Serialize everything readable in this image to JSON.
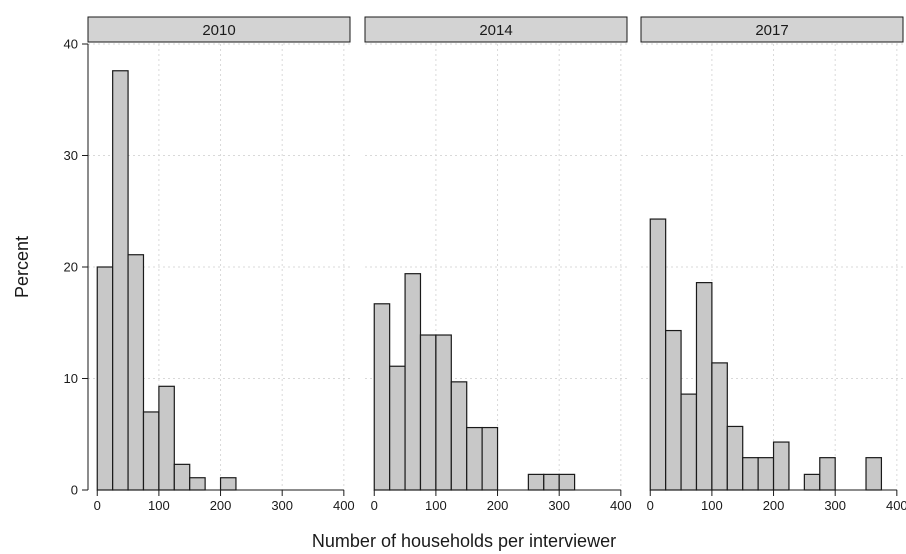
{
  "chart_data": {
    "type": "bar",
    "xlabel": "Number of households per interviewer",
    "ylabel": "Percent",
    "xlim": [
      -15,
      410
    ],
    "ylim": [
      0,
      40
    ],
    "x_ticks": [
      0,
      100,
      200,
      300,
      400
    ],
    "y_ticks": [
      0,
      10,
      20,
      30,
      40
    ],
    "bin_width": 25,
    "grid": true,
    "colors": {
      "bar_fill": "#c8c8c8",
      "bar_stroke": "#1a1a1a",
      "strip_fill": "#d3d3d3"
    },
    "panels": [
      {
        "label": "2010",
        "bins": [
          {
            "start": 0,
            "value": 20.0
          },
          {
            "start": 25,
            "value": 37.6
          },
          {
            "start": 50,
            "value": 21.1
          },
          {
            "start": 75,
            "value": 7.0
          },
          {
            "start": 100,
            "value": 9.3
          },
          {
            "start": 125,
            "value": 2.3
          },
          {
            "start": 150,
            "value": 1.1
          },
          {
            "start": 200,
            "value": 1.1
          }
        ]
      },
      {
        "label": "2014",
        "bins": [
          {
            "start": 0,
            "value": 16.7
          },
          {
            "start": 25,
            "value": 11.1
          },
          {
            "start": 50,
            "value": 19.4
          },
          {
            "start": 75,
            "value": 13.9
          },
          {
            "start": 100,
            "value": 13.9
          },
          {
            "start": 125,
            "value": 9.7
          },
          {
            "start": 150,
            "value": 5.6
          },
          {
            "start": 175,
            "value": 5.6
          },
          {
            "start": 250,
            "value": 1.4
          },
          {
            "start": 275,
            "value": 1.4
          },
          {
            "start": 300,
            "value": 1.4
          }
        ]
      },
      {
        "label": "2017",
        "bins": [
          {
            "start": 0,
            "value": 24.3
          },
          {
            "start": 25,
            "value": 14.3
          },
          {
            "start": 50,
            "value": 8.6
          },
          {
            "start": 75,
            "value": 18.6
          },
          {
            "start": 100,
            "value": 11.4
          },
          {
            "start": 125,
            "value": 5.7
          },
          {
            "start": 150,
            "value": 2.9
          },
          {
            "start": 175,
            "value": 2.9
          },
          {
            "start": 200,
            "value": 4.3
          },
          {
            "start": 250,
            "value": 1.4
          },
          {
            "start": 275,
            "value": 2.9
          },
          {
            "start": 350,
            "value": 2.9
          }
        ]
      }
    ]
  }
}
